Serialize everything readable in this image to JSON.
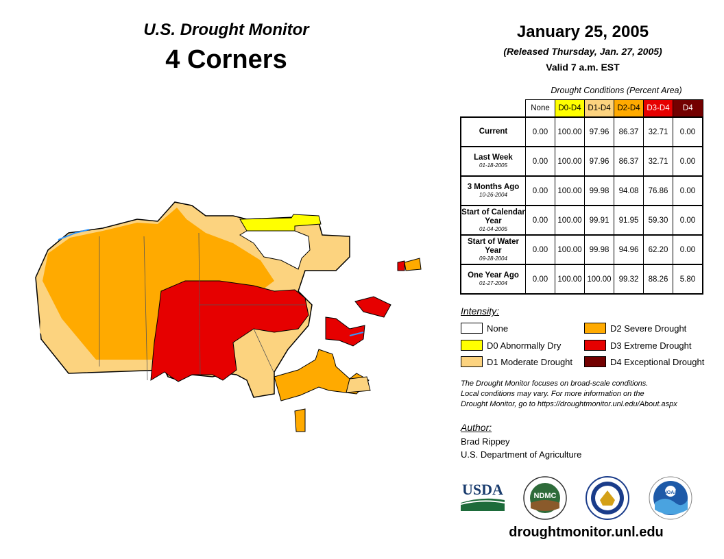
{
  "header": {
    "title": "U.S. Drought Monitor",
    "region": "4 Corners",
    "date": "January 25, 2005",
    "released": "(Released Thursday, Jan. 27, 2005)",
    "valid": "Valid 7 a.m. EST"
  },
  "table": {
    "caption": "Drought Conditions (Percent Area)",
    "columns": [
      "None",
      "D0-D4",
      "D1-D4",
      "D2-D4",
      "D3-D4",
      "D4"
    ],
    "column_colors": [
      "#ffffff",
      "#ffff00",
      "#fcd37f",
      "#ffaa00",
      "#e60000",
      "#730000"
    ],
    "column_text_colors": [
      "#000000",
      "#000000",
      "#000000",
      "#000000",
      "#ffffff",
      "#ffffff"
    ],
    "rows": [
      {
        "label": "Current",
        "date": "",
        "values": [
          "0.00",
          "100.00",
          "97.96",
          "86.37",
          "32.71",
          "0.00"
        ]
      },
      {
        "label": "Last Week",
        "date": "01-18-2005",
        "values": [
          "0.00",
          "100.00",
          "97.96",
          "86.37",
          "32.71",
          "0.00"
        ]
      },
      {
        "label": "3 Months Ago",
        "date": "10-26-2004",
        "values": [
          "0.00",
          "100.00",
          "99.98",
          "94.08",
          "76.86",
          "0.00"
        ]
      },
      {
        "label": "Start of Calendar Year",
        "date": "01-04-2005",
        "values": [
          "0.00",
          "100.00",
          "99.91",
          "91.95",
          "59.30",
          "0.00"
        ]
      },
      {
        "label": "Start of Water Year",
        "date": "09-28-2004",
        "values": [
          "0.00",
          "100.00",
          "99.98",
          "94.96",
          "62.20",
          "0.00"
        ]
      },
      {
        "label": "One Year Ago",
        "date": "01-27-2004",
        "values": [
          "0.00",
          "100.00",
          "100.00",
          "99.32",
          "88.26",
          "5.80"
        ]
      }
    ]
  },
  "legend": {
    "title": "Intensity:",
    "items": [
      {
        "label": "None",
        "color": "#ffffff"
      },
      {
        "label": "D0 Abnormally Dry",
        "color": "#ffff00"
      },
      {
        "label": "D1 Moderate Drought",
        "color": "#fcd37f"
      },
      {
        "label": "D2 Severe Drought",
        "color": "#ffaa00"
      },
      {
        "label": "D3 Extreme Drought",
        "color": "#e60000"
      },
      {
        "label": "D4 Exceptional Drought",
        "color": "#730000"
      }
    ]
  },
  "note": {
    "line1": "The Drought Monitor focuses on broad-scale conditions.",
    "line2": "Local conditions may vary. For more information on the",
    "line3": "Drought Monitor, go to https://droughtmonitor.unl.edu/About.aspx"
  },
  "author": {
    "heading": "Author:",
    "name": "Brad Rippey",
    "org": "U.S. Department of Agriculture"
  },
  "logos": {
    "usda": "USDA",
    "ndmc": "NDMC",
    "noaa": "NOAA"
  },
  "footer_url": "droughtmonitor.unl.edu"
}
